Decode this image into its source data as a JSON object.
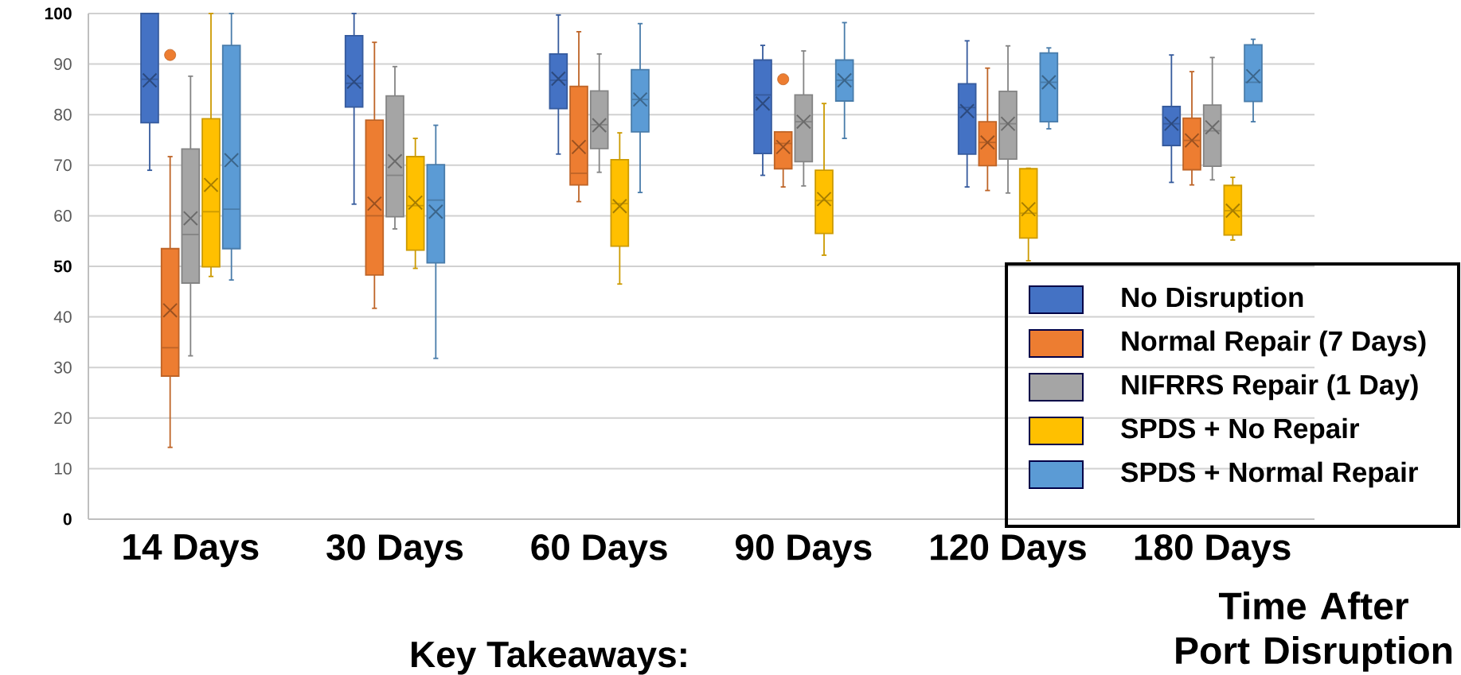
{
  "chart_data": {
    "type": "box",
    "categories": [
      "14 Days",
      "30 Days",
      "60 Days",
      "90 Days",
      "120 Days",
      "180 Days"
    ],
    "xlabel": "Time After Port Disruption",
    "ylim": [
      0,
      100
    ],
    "yticks": [
      0,
      10,
      20,
      30,
      40,
      50,
      60,
      70,
      80,
      90,
      100
    ],
    "grid": "y",
    "legend": "bottom right",
    "annotations": [
      "Key Takeaways:"
    ],
    "series": [
      {
        "name": "No Disruption",
        "color": "#4472c4",
        "boxes": [
          {
            "low": 69,
            "q1": 78.4,
            "median": 87,
            "q3": 100,
            "high": 100,
            "mean": 86.8
          },
          {
            "low": 62.3,
            "q1": 81.5,
            "median": 86.2,
            "q3": 95.6,
            "high": 100,
            "mean": 86.5
          },
          {
            "low": 72.2,
            "q1": 81.2,
            "median": 86.8,
            "q3": 92,
            "high": 99.7,
            "mean": 87.1
          },
          {
            "low": 68,
            "q1": 72.3,
            "median": 83.9,
            "q3": 90.8,
            "high": 93.7,
            "mean": 82.2
          },
          {
            "low": 65.7,
            "q1": 72.2,
            "median": 81.4,
            "q3": 86.1,
            "high": 94.6,
            "mean": 80.7
          },
          {
            "low": 66.6,
            "q1": 73.9,
            "median": 78.2,
            "q3": 81.6,
            "high": 91.8,
            "mean": 78.2
          }
        ]
      },
      {
        "name": "Normal Repair (7 Days)",
        "color": "#ed7d31",
        "boxes": [
          {
            "low": 14.2,
            "q1": 28.3,
            "median": 33.9,
            "q3": 53.5,
            "high": 71.7,
            "mean": 41.3,
            "outliers": [
              91.8
            ]
          },
          {
            "low": 41.7,
            "q1": 48.3,
            "median": 60,
            "q3": 78.9,
            "high": 94.3,
            "mean": 62.4
          },
          {
            "low": 62.8,
            "q1": 66.1,
            "median": 68.4,
            "q3": 85.6,
            "high": 96.4,
            "mean": 73.6
          },
          {
            "low": 65.7,
            "q1": 69.3,
            "median": 74.3,
            "q3": 76.6,
            "high": 76.6,
            "mean": 73.6,
            "outliers": [
              87
            ]
          },
          {
            "low": 65,
            "q1": 69.9,
            "median": 74.5,
            "q3": 78.6,
            "high": 89.2,
            "mean": 74.5
          },
          {
            "low": 66.1,
            "q1": 69.1,
            "median": 74.9,
            "q3": 79.3,
            "high": 88.5,
            "mean": 74.9
          }
        ]
      },
      {
        "name": "NIFRRS Repair (1 Day)",
        "color": "#a5a5a5",
        "boxes": [
          {
            "low": 32.3,
            "q1": 46.7,
            "median": 56.3,
            "q3": 73.2,
            "high": 87.6,
            "mean": 59.5
          },
          {
            "low": 57.4,
            "q1": 59.8,
            "median": 68,
            "q3": 83.7,
            "high": 89.5,
            "mean": 70.8
          },
          {
            "low": 68.6,
            "q1": 73.3,
            "median": 78,
            "q3": 84.7,
            "high": 92,
            "mean": 77.9
          },
          {
            "low": 65.9,
            "q1": 70.7,
            "median": 78.6,
            "q3": 83.9,
            "high": 92.6,
            "mean": 78.6
          },
          {
            "low": 64.5,
            "q1": 71.2,
            "median": 78.2,
            "q3": 84.6,
            "high": 93.6,
            "mean": 78.2
          },
          {
            "low": 67.1,
            "q1": 69.8,
            "median": 76.8,
            "q3": 81.9,
            "high": 91.3,
            "mean": 77.5
          }
        ]
      },
      {
        "name": "SPDS + No Repair",
        "color": "#ffc000",
        "boxes": [
          {
            "low": 48,
            "q1": 49.9,
            "median": 60.8,
            "q3": 79.2,
            "high": 100,
            "mean": 66.1
          },
          {
            "low": 49.6,
            "q1": 53.2,
            "median": 62,
            "q3": 71.7,
            "high": 75.3,
            "mean": 62.6
          },
          {
            "low": 46.5,
            "q1": 54,
            "median": 62.4,
            "q3": 71.1,
            "high": 76.4,
            "mean": 61.9
          },
          {
            "low": 52.2,
            "q1": 56.5,
            "median": 63,
            "q3": 69,
            "high": 82.2,
            "mean": 63.3
          },
          {
            "low": 51.1,
            "q1": 55.6,
            "median": 60.5,
            "q3": 69.3,
            "high": 69.4,
            "mean": 61.3
          },
          {
            "low": 55.2,
            "q1": 56.2,
            "median": 61,
            "q3": 66,
            "high": 67.6,
            "mean": 61
          }
        ]
      },
      {
        "name": "SPDS + Normal Repair",
        "color": "#5b9bd5",
        "boxes": [
          {
            "low": 47.3,
            "q1": 53.5,
            "median": 61.3,
            "q3": 93.7,
            "high": 100,
            "mean": 71
          },
          {
            "low": 31.8,
            "q1": 50.7,
            "median": 63.1,
            "q3": 70.1,
            "high": 77.9,
            "mean": 60.8
          },
          {
            "low": 64.6,
            "q1": 76.6,
            "median": 83,
            "q3": 88.9,
            "high": 98,
            "mean": 83
          },
          {
            "low": 75.3,
            "q1": 82.7,
            "median": 86.8,
            "q3": 90.8,
            "high": 98.2,
            "mean": 86.8
          },
          {
            "low": 77.2,
            "q1": 78.6,
            "median": 86.4,
            "q3": 92.2,
            "high": 93.2,
            "mean": 86.4
          },
          {
            "low": 78.6,
            "q1": 82.6,
            "median": 86.4,
            "q3": 93.8,
            "high": 94.9,
            "mean": 87.6
          }
        ]
      }
    ]
  }
}
